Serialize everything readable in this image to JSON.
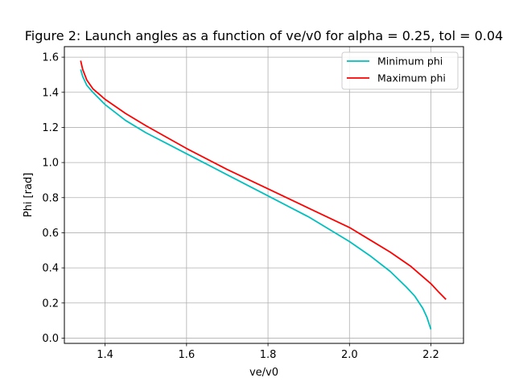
{
  "chart_data": {
    "type": "line",
    "title": "Figure 2: Launch angles as a function of ve/v0 for alpha = 0.25, tol = 0.04",
    "xlabel": "ve/v0",
    "ylabel": "Phi [rad]",
    "xlim": [
      1.3,
      2.28
    ],
    "ylim": [
      -0.03,
      1.66
    ],
    "xticks": [
      1.4,
      1.6,
      1.8,
      2.0,
      2.2
    ],
    "xtick_labels": [
      "1.4",
      "1.6",
      "1.8",
      "2.0",
      "2.2"
    ],
    "yticks": [
      0.0,
      0.2,
      0.4,
      0.6,
      0.8,
      1.0,
      1.2,
      1.4,
      1.6
    ],
    "ytick_labels": [
      "0.0",
      "0.2",
      "0.4",
      "0.6",
      "0.8",
      "1.0",
      "1.2",
      "1.4",
      "1.6"
    ],
    "grid": true,
    "legend_position": "top-right",
    "series": [
      {
        "name": "Minimum phi",
        "color": "#00bfbf",
        "x": [
          1.34,
          1.345,
          1.355,
          1.37,
          1.4,
          1.45,
          1.5,
          1.55,
          1.6,
          1.7,
          1.8,
          1.9,
          2.0,
          2.05,
          2.1,
          2.14,
          2.16,
          2.18,
          2.19,
          2.2
        ],
        "y": [
          1.53,
          1.49,
          1.44,
          1.4,
          1.33,
          1.24,
          1.17,
          1.11,
          1.05,
          0.93,
          0.81,
          0.69,
          0.55,
          0.47,
          0.38,
          0.29,
          0.24,
          0.17,
          0.12,
          0.05
        ]
      },
      {
        "name": "Maximum phi",
        "color": "#ff0000",
        "x": [
          1.34,
          1.345,
          1.355,
          1.37,
          1.4,
          1.45,
          1.5,
          1.6,
          1.7,
          1.8,
          1.9,
          2.0,
          2.05,
          2.1,
          2.15,
          2.18,
          2.2,
          2.22,
          2.237
        ],
        "y": [
          1.58,
          1.53,
          1.47,
          1.42,
          1.36,
          1.28,
          1.21,
          1.08,
          0.96,
          0.85,
          0.74,
          0.63,
          0.56,
          0.49,
          0.41,
          0.35,
          0.31,
          0.26,
          0.22
        ]
      }
    ]
  }
}
